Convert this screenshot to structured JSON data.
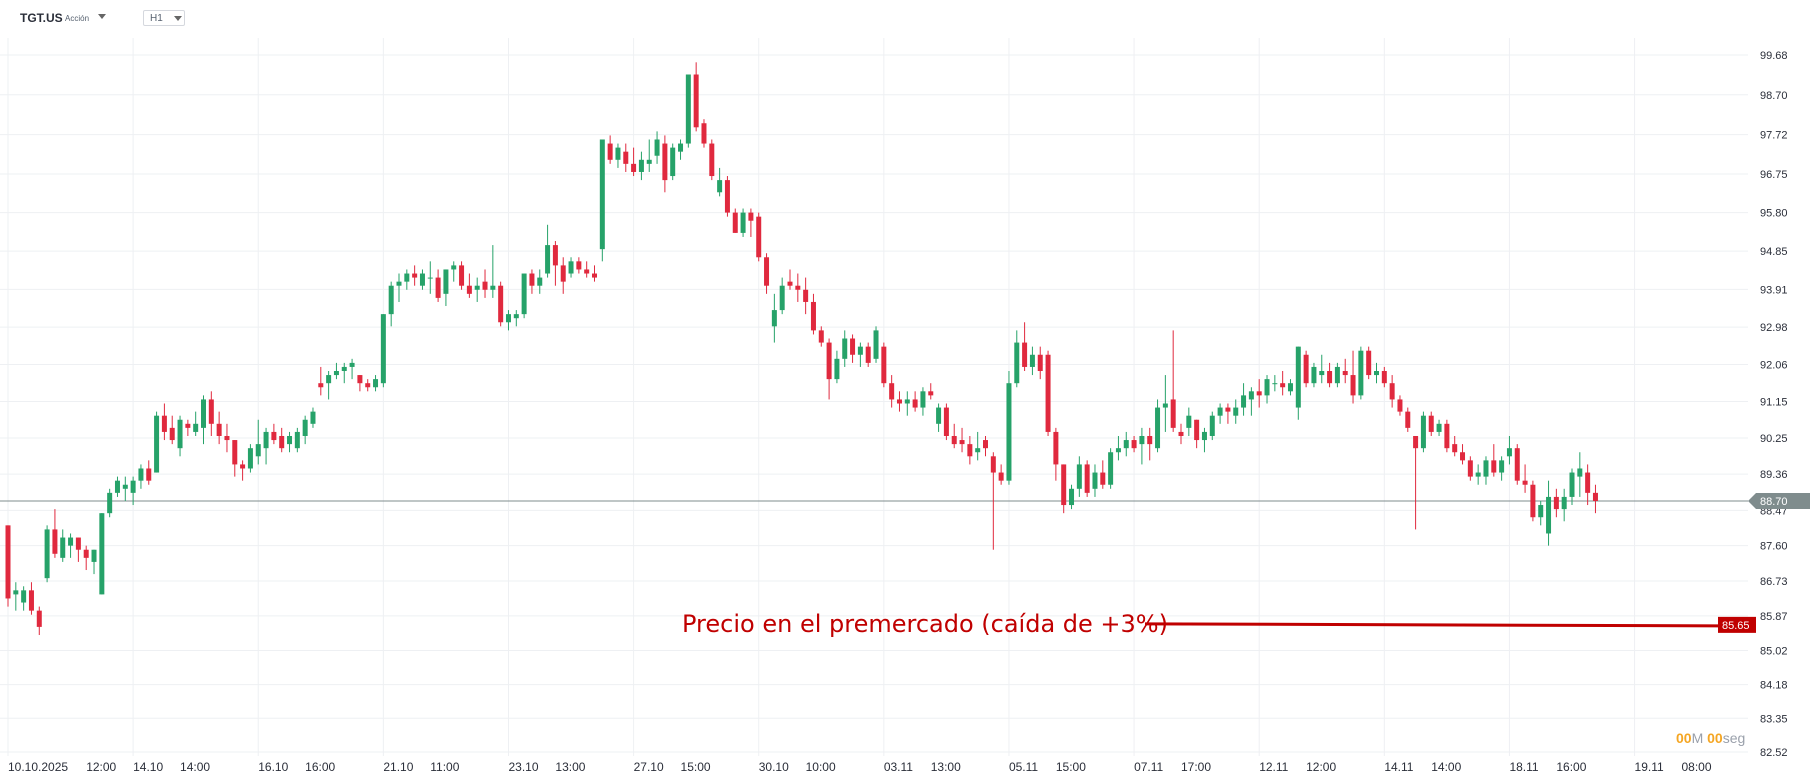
{
  "header": {
    "symbol": "TGT.US",
    "instrument_type": "Acción",
    "timeframe": "H1"
  },
  "countdown": {
    "minutes": "00",
    "minutes_unit": "M",
    "seconds": "00",
    "seconds_unit": "seg"
  },
  "colors": {
    "up": "#26a269",
    "down": "#e0293e",
    "grid": "#eef0f3",
    "current_price_line": "#7f8c8d",
    "annotation": "#c00000",
    "axis_text": "#2a2e39"
  },
  "chart_data": {
    "type": "candlestick",
    "title": "",
    "xlabel": "",
    "ylabel": "",
    "ylim": [
      82.52,
      100.2
    ],
    "grid": true,
    "y_axis_position": "right",
    "y_ticks": [
      "99.68",
      "98.70",
      "97.72",
      "96.75",
      "95.80",
      "94.85",
      "93.91",
      "92.98",
      "92.06",
      "91.15",
      "90.25",
      "89.36",
      "88.47",
      "87.60",
      "86.73",
      "85.87",
      "85.02",
      "84.18",
      "83.35",
      "82.52"
    ],
    "x_ticks": [
      {
        "label": "10.10.2025",
        "index": 0
      },
      {
        "label": "12:00",
        "index": 10
      },
      {
        "label": "14.10",
        "index": 16
      },
      {
        "label": "14:00",
        "index": 22
      },
      {
        "label": "16.10",
        "index": 32
      },
      {
        "label": "16:00",
        "index": 38
      },
      {
        "label": "21.10",
        "index": 48
      },
      {
        "label": "11:00",
        "index": 54
      },
      {
        "label": "23.10",
        "index": 64
      },
      {
        "label": "13:00",
        "index": 70
      },
      {
        "label": "27.10",
        "index": 80
      },
      {
        "label": "15:00",
        "index": 86
      },
      {
        "label": "30.10",
        "index": 96
      },
      {
        "label": "10:00",
        "index": 102
      },
      {
        "label": "03.11",
        "index": 112
      },
      {
        "label": "13:00",
        "index": 118
      },
      {
        "label": "05.11",
        "index": 128
      },
      {
        "label": "15:00",
        "index": 134
      },
      {
        "label": "07.11",
        "index": 144
      },
      {
        "label": "17:00",
        "index": 150
      },
      {
        "label": "12.11",
        "index": 160
      },
      {
        "label": "12:00",
        "index": 166
      },
      {
        "label": "14.11",
        "index": 176
      },
      {
        "label": "14:00",
        "index": 182
      },
      {
        "label": "18.11",
        "index": 192
      },
      {
        "label": "16:00",
        "index": 198
      },
      {
        "label": "19.11",
        "index": 208
      },
      {
        "label": "08:00",
        "index": 214
      }
    ],
    "candles": [
      [
        88.1,
        88.1,
        86.1,
        86.3
      ],
      [
        86.4,
        86.7,
        86.0,
        86.5
      ],
      [
        86.2,
        86.6,
        86.0,
        86.5
      ],
      [
        86.5,
        86.7,
        85.9,
        86.0
      ],
      [
        86.0,
        86.1,
        85.4,
        85.6
      ],
      [
        86.8,
        88.1,
        86.7,
        88.0
      ],
      [
        88.0,
        88.5,
        87.3,
        87.4
      ],
      [
        87.3,
        88.0,
        87.2,
        87.8
      ],
      [
        87.6,
        87.9,
        87.3,
        87.8
      ],
      [
        87.8,
        87.8,
        87.2,
        87.5
      ],
      [
        87.5,
        87.6,
        87.0,
        87.3
      ],
      [
        87.2,
        87.5,
        86.9,
        87.5
      ],
      [
        86.4,
        88.4,
        86.4,
        88.4
      ],
      [
        88.4,
        89.0,
        88.3,
        88.9
      ],
      [
        88.9,
        89.3,
        88.8,
        89.2
      ],
      [
        89.0,
        89.3,
        88.7,
        89.1
      ],
      [
        88.9,
        89.3,
        88.6,
        89.2
      ],
      [
        89.2,
        89.6,
        89.0,
        89.5
      ],
      [
        89.5,
        89.7,
        89.1,
        89.2
      ],
      [
        89.4,
        90.9,
        89.4,
        90.8
      ],
      [
        90.8,
        91.1,
        90.2,
        90.4
      ],
      [
        90.5,
        90.8,
        90.1,
        90.2
      ],
      [
        90.0,
        90.8,
        89.8,
        90.7
      ],
      [
        90.6,
        90.7,
        90.3,
        90.5
      ],
      [
        90.4,
        90.9,
        90.3,
        90.6
      ],
      [
        90.5,
        91.3,
        90.1,
        91.2
      ],
      [
        91.2,
        91.4,
        90.3,
        90.6
      ],
      [
        90.6,
        90.9,
        90.1,
        90.3
      ],
      [
        90.3,
        90.6,
        89.9,
        90.2
      ],
      [
        90.2,
        90.2,
        89.3,
        89.6
      ],
      [
        89.6,
        89.7,
        89.2,
        89.5
      ],
      [
        89.5,
        90.1,
        89.4,
        90.0
      ],
      [
        89.8,
        90.7,
        89.6,
        90.1
      ],
      [
        90.0,
        90.5,
        89.6,
        90.4
      ],
      [
        90.4,
        90.6,
        90.1,
        90.2
      ],
      [
        90.3,
        90.5,
        89.9,
        90.0
      ],
      [
        90.1,
        90.4,
        89.9,
        90.3
      ],
      [
        90.0,
        90.5,
        89.9,
        90.4
      ],
      [
        90.3,
        90.8,
        90.1,
        90.7
      ],
      [
        90.6,
        91.0,
        90.5,
        90.9
      ],
      [
        91.6,
        92.0,
        91.3,
        91.5
      ],
      [
        91.6,
        91.9,
        91.2,
        91.8
      ],
      [
        91.8,
        92.1,
        91.7,
        91.9
      ],
      [
        91.9,
        92.1,
        91.6,
        92.0
      ],
      [
        92.0,
        92.2,
        91.7,
        92.1
      ],
      [
        91.8,
        91.8,
        91.4,
        91.6
      ],
      [
        91.6,
        91.7,
        91.4,
        91.5
      ],
      [
        91.5,
        91.8,
        91.4,
        91.7
      ],
      [
        91.6,
        93.3,
        91.5,
        93.3
      ],
      [
        93.3,
        94.1,
        93.0,
        94.0
      ],
      [
        94.0,
        94.3,
        93.6,
        94.1
      ],
      [
        94.1,
        94.4,
        93.9,
        94.3
      ],
      [
        94.3,
        94.5,
        94.0,
        94.2
      ],
      [
        94.0,
        94.4,
        93.9,
        94.3
      ],
      [
        94.2,
        94.6,
        93.8,
        94.2
      ],
      [
        94.2,
        94.4,
        93.6,
        93.7
      ],
      [
        93.8,
        94.4,
        93.5,
        94.4
      ],
      [
        94.4,
        94.6,
        94.1,
        94.5
      ],
      [
        94.5,
        94.6,
        93.9,
        94.0
      ],
      [
        94.0,
        94.3,
        93.7,
        93.8
      ],
      [
        93.9,
        94.2,
        93.6,
        94.0
      ],
      [
        94.1,
        94.4,
        93.7,
        93.9
      ],
      [
        93.9,
        95.0,
        93.7,
        94.0
      ],
      [
        94.0,
        94.1,
        93.0,
        93.1
      ],
      [
        93.1,
        93.4,
        92.9,
        93.3
      ],
      [
        93.2,
        93.4,
        93.0,
        93.3
      ],
      [
        93.3,
        94.3,
        93.2,
        94.3
      ],
      [
        94.3,
        94.4,
        93.8,
        94.0
      ],
      [
        94.0,
        94.4,
        93.8,
        94.2
      ],
      [
        94.3,
        95.5,
        94.2,
        95.0
      ],
      [
        95.0,
        95.1,
        94.0,
        94.5
      ],
      [
        94.5,
        94.7,
        93.8,
        94.1
      ],
      [
        94.3,
        94.7,
        94.2,
        94.6
      ],
      [
        94.6,
        94.7,
        94.3,
        94.4
      ],
      [
        94.4,
        94.6,
        94.2,
        94.3
      ],
      [
        94.3,
        94.5,
        94.1,
        94.2
      ],
      [
        94.9,
        97.6,
        94.6,
        97.6
      ],
      [
        97.5,
        97.7,
        97.0,
        97.1
      ],
      [
        97.1,
        97.5,
        96.9,
        97.4
      ],
      [
        97.3,
        97.5,
        96.8,
        97.0
      ],
      [
        97.0,
        97.4,
        96.7,
        96.8
      ],
      [
        96.8,
        97.3,
        96.6,
        97.1
      ],
      [
        97.0,
        97.6,
        96.8,
        97.1
      ],
      [
        97.2,
        97.8,
        97.0,
        97.6
      ],
      [
        97.5,
        97.7,
        96.3,
        96.6
      ],
      [
        96.7,
        97.5,
        96.6,
        97.4
      ],
      [
        97.3,
        97.6,
        97.1,
        97.5
      ],
      [
        97.5,
        99.2,
        97.4,
        99.2
      ],
      [
        99.2,
        99.5,
        97.8,
        97.9
      ],
      [
        98.0,
        98.1,
        97.4,
        97.5
      ],
      [
        97.5,
        97.6,
        96.6,
        96.7
      ],
      [
        96.3,
        96.9,
        96.2,
        96.6
      ],
      [
        96.6,
        96.7,
        95.7,
        95.8
      ],
      [
        95.8,
        95.9,
        95.3,
        95.3
      ],
      [
        95.3,
        95.9,
        95.2,
        95.8
      ],
      [
        95.8,
        95.9,
        95.2,
        95.6
      ],
      [
        95.7,
        95.8,
        94.6,
        94.7
      ],
      [
        94.7,
        94.8,
        93.8,
        94.0
      ],
      [
        93.0,
        93.8,
        92.6,
        93.4
      ],
      [
        93.4,
        94.2,
        93.3,
        94.0
      ],
      [
        94.1,
        94.4,
        93.9,
        94.0
      ],
      [
        94.0,
        94.3,
        93.6,
        93.9
      ],
      [
        93.9,
        94.2,
        93.3,
        93.6
      ],
      [
        93.6,
        93.8,
        92.8,
        92.9
      ],
      [
        92.9,
        93.0,
        92.5,
        92.6
      ],
      [
        92.6,
        92.7,
        91.2,
        91.7
      ],
      [
        91.7,
        92.4,
        91.6,
        92.2
      ],
      [
        92.2,
        92.9,
        92.0,
        92.7
      ],
      [
        92.7,
        92.8,
        92.1,
        92.3
      ],
      [
        92.3,
        92.6,
        92.0,
        92.5
      ],
      [
        92.5,
        92.6,
        92.0,
        92.1
      ],
      [
        92.2,
        93.0,
        92.1,
        92.9
      ],
      [
        92.5,
        92.6,
        91.5,
        91.6
      ],
      [
        91.6,
        91.8,
        91.0,
        91.2
      ],
      [
        91.2,
        91.4,
        90.9,
        91.1
      ],
      [
        91.1,
        91.4,
        90.8,
        91.2
      ],
      [
        91.2,
        91.4,
        90.9,
        91.0
      ],
      [
        91.0,
        91.5,
        90.8,
        91.4
      ],
      [
        91.4,
        91.6,
        91.2,
        91.3
      ],
      [
        90.6,
        91.1,
        90.4,
        91.0
      ],
      [
        91.0,
        91.1,
        90.2,
        90.3
      ],
      [
        90.3,
        90.6,
        90.0,
        90.1
      ],
      [
        90.2,
        90.5,
        89.9,
        90.1
      ],
      [
        90.1,
        90.3,
        89.6,
        89.8
      ],
      [
        89.9,
        90.4,
        89.7,
        90.0
      ],
      [
        90.2,
        90.3,
        89.8,
        90.0
      ],
      [
        89.8,
        89.9,
        87.5,
        89.4
      ],
      [
        89.4,
        89.6,
        89.1,
        89.2
      ],
      [
        89.2,
        91.9,
        89.1,
        91.6
      ],
      [
        91.6,
        92.9,
        91.5,
        92.6
      ],
      [
        92.6,
        93.1,
        91.9,
        92.0
      ],
      [
        92.0,
        92.5,
        91.8,
        92.3
      ],
      [
        92.3,
        92.5,
        91.7,
        91.9
      ],
      [
        92.3,
        92.4,
        90.3,
        90.4
      ],
      [
        90.4,
        90.5,
        89.2,
        89.6
      ],
      [
        89.6,
        89.6,
        88.4,
        88.6
      ],
      [
        88.6,
        89.1,
        88.5,
        89.0
      ],
      [
        89.0,
        89.8,
        88.8,
        89.6
      ],
      [
        89.6,
        89.7,
        88.8,
        88.9
      ],
      [
        89.0,
        89.6,
        88.8,
        89.4
      ],
      [
        89.4,
        89.7,
        89.0,
        89.1
      ],
      [
        89.1,
        90.0,
        89.0,
        89.9
      ],
      [
        89.9,
        90.3,
        89.7,
        90.0
      ],
      [
        90.0,
        90.4,
        89.8,
        90.2
      ],
      [
        90.2,
        90.3,
        89.9,
        90.0
      ],
      [
        90.1,
        90.5,
        89.6,
        90.3
      ],
      [
        90.3,
        90.5,
        89.7,
        90.1
      ],
      [
        90.0,
        91.2,
        89.9,
        91.0
      ],
      [
        91.0,
        91.8,
        90.4,
        91.1
      ],
      [
        91.2,
        92.9,
        90.4,
        90.5
      ],
      [
        90.4,
        90.6,
        90.1,
        90.3
      ],
      [
        90.5,
        91.0,
        90.3,
        90.8
      ],
      [
        90.7,
        90.7,
        90.0,
        90.2
      ],
      [
        90.2,
        90.5,
        89.9,
        90.4
      ],
      [
        90.3,
        90.9,
        90.2,
        90.8
      ],
      [
        90.8,
        91.1,
        90.6,
        91.0
      ],
      [
        91.0,
        91.1,
        90.6,
        90.9
      ],
      [
        90.8,
        91.2,
        90.6,
        91.0
      ],
      [
        91.0,
        91.6,
        90.8,
        91.3
      ],
      [
        91.2,
        91.5,
        90.8,
        91.4
      ],
      [
        91.4,
        91.7,
        91.0,
        91.3
      ],
      [
        91.3,
        91.8,
        91.1,
        91.7
      ],
      [
        91.6,
        91.8,
        91.4,
        91.6
      ],
      [
        91.6,
        91.9,
        91.3,
        91.5
      ],
      [
        91.4,
        91.7,
        91.3,
        91.6
      ],
      [
        91.0,
        92.5,
        90.7,
        92.5
      ],
      [
        92.3,
        92.4,
        91.5,
        91.6
      ],
      [
        91.6,
        92.1,
        91.5,
        92.0
      ],
      [
        91.8,
        92.3,
        91.6,
        91.9
      ],
      [
        91.9,
        92.1,
        91.5,
        91.6
      ],
      [
        91.6,
        92.1,
        91.5,
        92.0
      ],
      [
        91.9,
        92.2,
        91.6,
        91.8
      ],
      [
        91.8,
        92.4,
        91.1,
        91.3
      ],
      [
        91.3,
        92.5,
        91.2,
        92.4
      ],
      [
        92.4,
        92.5,
        91.7,
        91.8
      ],
      [
        91.8,
        92.1,
        91.6,
        91.9
      ],
      [
        91.9,
        92.0,
        91.5,
        91.6
      ],
      [
        91.6,
        91.8,
        91.0,
        91.2
      ],
      [
        91.2,
        91.3,
        90.8,
        90.9
      ],
      [
        90.9,
        91.0,
        90.4,
        90.5
      ],
      [
        90.3,
        90.3,
        88.0,
        90.0
      ],
      [
        90.0,
        90.9,
        89.9,
        90.8
      ],
      [
        90.8,
        90.9,
        90.3,
        90.4
      ],
      [
        90.4,
        90.7,
        90.3,
        90.6
      ],
      [
        90.6,
        90.7,
        89.9,
        90.0
      ],
      [
        90.1,
        90.3,
        89.8,
        89.9
      ],
      [
        89.9,
        90.1,
        89.6,
        89.7
      ],
      [
        89.7,
        89.8,
        89.2,
        89.3
      ],
      [
        89.3,
        89.6,
        89.1,
        89.4
      ],
      [
        89.3,
        89.8,
        89.1,
        89.7
      ],
      [
        89.7,
        90.1,
        89.3,
        89.4
      ],
      [
        89.4,
        89.8,
        89.2,
        89.7
      ],
      [
        89.8,
        90.3,
        89.6,
        90.0
      ],
      [
        90.0,
        90.1,
        89.1,
        89.2
      ],
      [
        89.2,
        89.6,
        88.9,
        89.1
      ],
      [
        89.1,
        89.2,
        88.2,
        88.3
      ],
      [
        88.3,
        88.7,
        88.1,
        88.6
      ],
      [
        87.9,
        89.2,
        87.6,
        88.8
      ],
      [
        88.8,
        89.0,
        88.3,
        88.5
      ],
      [
        88.5,
        89.0,
        88.2,
        88.8
      ],
      [
        88.8,
        89.5,
        88.6,
        89.4
      ],
      [
        89.3,
        89.9,
        88.8,
        89.5
      ],
      [
        89.4,
        89.6,
        88.6,
        88.9
      ],
      [
        88.9,
        89.1,
        88.4,
        88.7
      ]
    ],
    "current_price": 88.7,
    "current_price_label": "88.70",
    "annotation": {
      "text": "Precio en el premercado (caída de +3%)",
      "price": 85.65,
      "price_label": "85.65"
    }
  }
}
